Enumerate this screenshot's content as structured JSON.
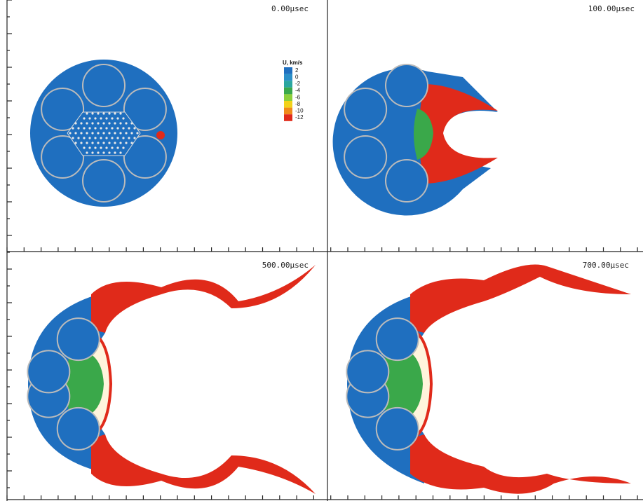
{
  "panels": [
    {
      "time": "0.00µsec"
    },
    {
      "time": "100.00µsec"
    },
    {
      "time": "500.00µsec"
    },
    {
      "time": "700.00µsec"
    }
  ],
  "legend": {
    "title": "U, km/s",
    "items": [
      {
        "label": "2",
        "color": "#1f6fbf"
      },
      {
        "label": "0",
        "color": "#2a8fc8"
      },
      {
        "label": "-2",
        "color": "#2aa6a0"
      },
      {
        "label": "-4",
        "color": "#3aa84a"
      },
      {
        "label": "-6",
        "color": "#8ccf3a"
      },
      {
        "label": "-8",
        "color": "#f2d21a"
      },
      {
        "label": "-10",
        "color": "#f08a1a"
      },
      {
        "label": "-12",
        "color": "#e02a1a"
      }
    ]
  }
}
